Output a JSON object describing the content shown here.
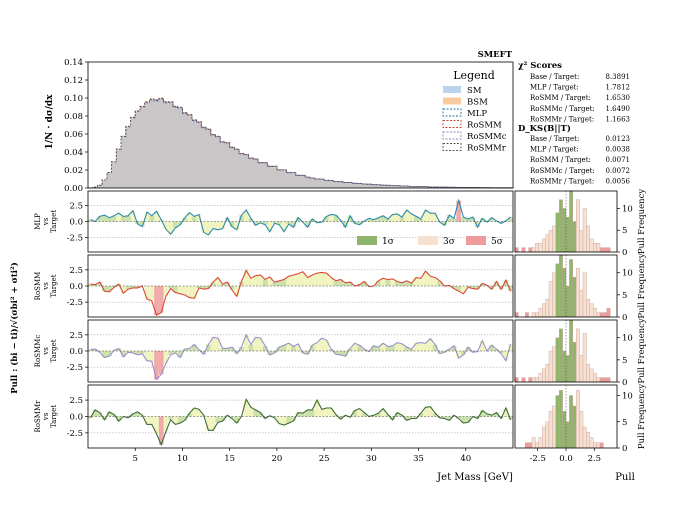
{
  "chart_data": {
    "type": "bar",
    "title": "SMEFT",
    "main_panel": {
      "ylabel": "1/N · dσ/dx",
      "ylim": [
        0,
        0.14
      ],
      "yticks": [
        "0.00",
        "0.02",
        "0.04",
        "0.06",
        "0.08",
        "0.10",
        "0.12",
        "0.14"
      ],
      "xlim": [
        0,
        45
      ],
      "legend_title": "Legend",
      "legend": [
        "SM",
        "BSM",
        "MLP",
        "RoSMM",
        "RoSMMc",
        "RoSMMr"
      ],
      "bin_width": 0.5,
      "sm_values": [
        0.0,
        0.001,
        0.003,
        0.008,
        0.016,
        0.028,
        0.042,
        0.056,
        0.067,
        0.077,
        0.084,
        0.09,
        0.094,
        0.097,
        0.099,
        0.098,
        0.096,
        0.094,
        0.091,
        0.088,
        0.084,
        0.08,
        0.076,
        0.072,
        0.068,
        0.064,
        0.06,
        0.056,
        0.052,
        0.049,
        0.046,
        0.042,
        0.039,
        0.036,
        0.034,
        0.031,
        0.029,
        0.027,
        0.025,
        0.023,
        0.021,
        0.019,
        0.018,
        0.016,
        0.015,
        0.014,
        0.012,
        0.011,
        0.01,
        0.0095,
        0.0088,
        0.008,
        0.0074,
        0.0068,
        0.0063,
        0.0058,
        0.0053,
        0.0049,
        0.0045,
        0.0041,
        0.0038,
        0.0035,
        0.0032,
        0.0029,
        0.0027,
        0.0025,
        0.0023,
        0.0021,
        0.0019,
        0.0017,
        0.0016,
        0.0014,
        0.0013,
        0.0012,
        0.0011,
        0.001,
        0.0009,
        0.0008,
        0.0007,
        0.0006,
        0.0006,
        0.0005,
        0.0005,
        0.0004,
        0.0004,
        0.0003,
        0.0003,
        0.0002,
        0.0002,
        0.0002
      ],
      "bsm_values": [
        0.0,
        0.001,
        0.003,
        0.009,
        0.017,
        0.029,
        0.043,
        0.057,
        0.068,
        0.078,
        0.085,
        0.09,
        0.095,
        0.098,
        0.097,
        0.099,
        0.095,
        0.095,
        0.09,
        0.089,
        0.083,
        0.081,
        0.075,
        0.073,
        0.067,
        0.065,
        0.059,
        0.057,
        0.051,
        0.05,
        0.045,
        0.043,
        0.038,
        0.037,
        0.033,
        0.032,
        0.028,
        0.028,
        0.024,
        0.024,
        0.02,
        0.02,
        0.017,
        0.017,
        0.014,
        0.014,
        0.012,
        0.011,
        0.01,
        0.0098,
        0.0085,
        0.0082,
        0.0072,
        0.007,
        0.0061,
        0.006,
        0.0052,
        0.005,
        0.0044,
        0.0042,
        0.0037,
        0.0036,
        0.0031,
        0.003,
        0.0026,
        0.0026,
        0.0022,
        0.0022,
        0.0018,
        0.0018,
        0.0015,
        0.0015,
        0.0012,
        0.0012,
        0.001,
        0.001,
        0.0008,
        0.0008,
        0.0007,
        0.0006,
        0.0006,
        0.0005,
        0.0005,
        0.0004,
        0.0004,
        0.0003,
        0.0003,
        0.0002,
        0.0002,
        0.0002
      ]
    },
    "scores": {
      "chi2_title": "χ² Scores",
      "chi2": [
        {
          "label": "Base / Target:",
          "value": "8.3891"
        },
        {
          "label": "MLP / Target:",
          "value": "1.7812"
        },
        {
          "label": "RoSMM / Target:",
          "value": "1.6530"
        },
        {
          "label": "RoSMMc / Target:",
          "value": "1.6490"
        },
        {
          "label": "RoSMMr / Target:",
          "value": "1.1663"
        }
      ],
      "ks_title": "D_KS(B||T)",
      "ks": [
        {
          "label": "Base / Target:",
          "value": "0.0123"
        },
        {
          "label": "MLP / Target:",
          "value": "0.0038"
        },
        {
          "label": "RoSMM / Target:",
          "value": "0.0071"
        },
        {
          "label": "RoSMMc / Target:",
          "value": "0.0072"
        },
        {
          "label": "RoSMMr / Target:",
          "value": "0.0056"
        }
      ]
    },
    "pull_ylabel": "Pull : (bi − ti)/√(σbi² + σti²)",
    "pull_yticks": [
      "-2.5",
      "0.0",
      "2.5"
    ],
    "pull_ylim": [
      -4.8,
      4.8
    ],
    "xlabel": "Jet Mass [GeV]",
    "xticks": [
      "5",
      "10",
      "15",
      "20",
      "25",
      "30",
      "35",
      "40"
    ],
    "sigma_legend": [
      "1σ",
      "3σ",
      "5σ"
    ],
    "pull_panels": [
      {
        "name": "MLP",
        "vs": "vs",
        "target": "Target",
        "color": "#2a8ab0",
        "pull": [
          0.3,
          0.0,
          0.8,
          1.0,
          0.6,
          0.9,
          1.3,
          0.8,
          0.9,
          1.7,
          -0.4,
          -0.8,
          1.5,
          0.9,
          1.6,
          0.3,
          -1.2,
          -2.0,
          -1.0,
          -0.5,
          0.6,
          1.4,
          0.8,
          1.1,
          -1.7,
          -2.1,
          -1.1,
          -1.3,
          -1.1,
          0.6,
          -0.8,
          -1.3,
          1.0,
          1.8,
          0.5,
          -0.6,
          -0.2,
          -0.5,
          -1.6,
          -0.3,
          -0.5,
          -1.6,
          -0.4,
          -0.9,
          0.6,
          -0.1,
          -0.9,
          0.4,
          -0.2,
          -0.1,
          0.8,
          1.1,
          1.0,
          0.2,
          -0.9,
          0.9,
          -0.3,
          -0.5,
          0.1,
          0.5,
          0.3,
          0.6,
          0.9,
          0.4,
          1.1,
          1.2,
          0.7,
          1.8,
          1.2,
          0.8,
          0.4,
          1.8,
          1.3,
          1.3,
          -0.1,
          -0.6,
          1.0,
          0.5,
          3.3,
          0.7,
          0.4,
          0.7,
          -0.9,
          0.5,
          -0.1,
          0.6,
          0.1,
          -0.3,
          0.1,
          0.7
        ],
        "hist_ylim": [
          0,
          14
        ],
        "hist_yticks": [
          "0",
          "5",
          "10"
        ],
        "hist": [
          1,
          0,
          1,
          0,
          1,
          1,
          2,
          2,
          3,
          4,
          5,
          6,
          9,
          12,
          10,
          8,
          14,
          7,
          12,
          5,
          10,
          6,
          3,
          2,
          2,
          1,
          1,
          1,
          0,
          0
        ]
      },
      {
        "name": "RoSMM",
        "vs": "vs",
        "target": "Target",
        "color": "#d9473a",
        "pull": [
          0.3,
          0.2,
          0.6,
          -0.8,
          -0.9,
          -0.2,
          0.3,
          -1.1,
          -0.5,
          -0.3,
          -0.3,
          0.0,
          -2.0,
          -2.3,
          -4.5,
          -4.1,
          -1.6,
          -0.4,
          -1.0,
          -1.2,
          -1.4,
          -1.8,
          -1.9,
          -0.3,
          -0.5,
          -0.4,
          0.6,
          1.3,
          0.3,
          0.6,
          -0.6,
          -1.6,
          0.7,
          2.4,
          1.2,
          1.6,
          1.7,
          1.0,
          1.4,
          0.6,
          0.8,
          1.0,
          1.5,
          1.7,
          1.9,
          2.2,
          1.3,
          1.7,
          2.0,
          2.1,
          2.0,
          1.3,
          0.8,
          1.0,
          0.5,
          0.6,
          0.0,
          0.2,
          0.7,
          -0.1,
          0.0,
          0.8,
          1.2,
          1.0,
          1.1,
          0.7,
          0.5,
          0.8,
          0.4,
          1.3,
          1.2,
          2.3,
          1.5,
          1.3,
          0.8,
          0.0,
          0.1,
          -0.4,
          -0.8,
          -1.2,
          -0.2,
          -0.4,
          -0.5,
          0.4,
          0.1,
          -0.5,
          0.7,
          -0.5,
          0.9,
          -0.8
        ],
        "hist_ylim": [
          0,
          14
        ],
        "hist_yticks": [
          "0",
          "5",
          "10"
        ],
        "hist": [
          1,
          0,
          0,
          1,
          0,
          1,
          1,
          2,
          3,
          4,
          8,
          10,
          12,
          14,
          11,
          7,
          13,
          9,
          11,
          6,
          10,
          4,
          3,
          2,
          1,
          1,
          1,
          2,
          0,
          0
        ]
      },
      {
        "name": "RoSMMc",
        "vs": "vs",
        "target": "Target",
        "color": "#9a8fd0",
        "pull": [
          0.2,
          0.3,
          -0.2,
          -1.0,
          -0.8,
          0.1,
          0.4,
          -0.9,
          -0.2,
          -0.3,
          -0.6,
          -0.4,
          -1.5,
          -1.6,
          -4.4,
          -3.6,
          -1.9,
          -0.6,
          -0.3,
          -1.0,
          0.3,
          0.4,
          1.0,
          0.2,
          -0.5,
          1.0,
          2.1,
          2.0,
          0.4,
          0.4,
          0.6,
          -0.4,
          0.6,
          2.5,
          1.0,
          2.1,
          2.0,
          0.8,
          -0.6,
          -0.3,
          0.6,
          0.9,
          1.2,
          0.7,
          1.1,
          -0.3,
          -0.5,
          0.9,
          1.3,
          2.0,
          1.7,
          0.3,
          -0.5,
          -0.6,
          -0.8,
          0.4,
          1.2,
          0.9,
          0.3,
          -0.1,
          0.8,
          0.6,
          1.2,
          0.7,
          0.8,
          1.3,
          1.1,
          0.6,
          0.3,
          1.2,
          1.3,
          1.2,
          1.9,
          1.0,
          -0.4,
          -0.2,
          0.3,
          0.8,
          -1.1,
          -0.6,
          0.6,
          -0.2,
          -0.1,
          1.6,
          0.0,
          0.9,
          0.3,
          -0.4,
          -1.5,
          1.1
        ],
        "hist_ylim": [
          0,
          14
        ],
        "hist_yticks": [
          "0",
          "5",
          "10"
        ],
        "hist": [
          1,
          0,
          1,
          0,
          1,
          1,
          1,
          2,
          3,
          4,
          7,
          8,
          10,
          12,
          7,
          6,
          14,
          9,
          12,
          6,
          11,
          4,
          3,
          2,
          1,
          1,
          1,
          1,
          0,
          0
        ]
      },
      {
        "name": "RoSMMr",
        "vs": "vs",
        "target": "Target",
        "color": "#3e6b3a",
        "pull": [
          -0.2,
          1.0,
          0.6,
          -0.5,
          0.7,
          0.3,
          -0.7,
          0.0,
          -0.2,
          0.4,
          0.7,
          0.2,
          -1.2,
          -1.2,
          -2.6,
          -4.3,
          -2.3,
          -0.5,
          -1.2,
          -1.0,
          -0.6,
          0.5,
          1.3,
          1.1,
          0.2,
          -2.1,
          -2.1,
          -0.9,
          -0.7,
          0.2,
          -0.3,
          -1.0,
          0.0,
          2.6,
          1.4,
          1.0,
          0.6,
          -0.3,
          0.1,
          -0.2,
          -1.1,
          -1.3,
          -1.0,
          -0.7,
          0.6,
          0.5,
          1.0,
          1.0,
          2.5,
          1.1,
          1.3,
          1.3,
          0.3,
          -0.4,
          0.2,
          -0.1,
          0.9,
          1.2,
          0.6,
          0.0,
          0.2,
          0.5,
          1.2,
          0.3,
          -0.5,
          0.6,
          0.2,
          -0.6,
          -0.3,
          -0.3,
          0.5,
          1.4,
          1.5,
          0.5,
          -0.2,
          -0.3,
          -0.6,
          0.2,
          -0.3,
          -1.0,
          -0.9,
          0.0,
          -0.3,
          0.9,
          0.4,
          0.2,
          0.6,
          -0.3,
          1.3,
          -0.5
        ],
        "hist_ylim": [
          0,
          12
        ],
        "hist_yticks": [
          "0",
          "5",
          "10"
        ],
        "hist": [
          0,
          0,
          0,
          1,
          1,
          2,
          1,
          2,
          4,
          5,
          7,
          8,
          10,
          11,
          7,
          5,
          10,
          8,
          11,
          7,
          4,
          3,
          2,
          1,
          1,
          1,
          0,
          0,
          0,
          0
        ]
      }
    ],
    "hist_xlabel": "Pull",
    "hist_xticks": [
      "-2.5",
      "0.0",
      "2.5"
    ],
    "hist_ylabel": "Pull Frequency"
  }
}
